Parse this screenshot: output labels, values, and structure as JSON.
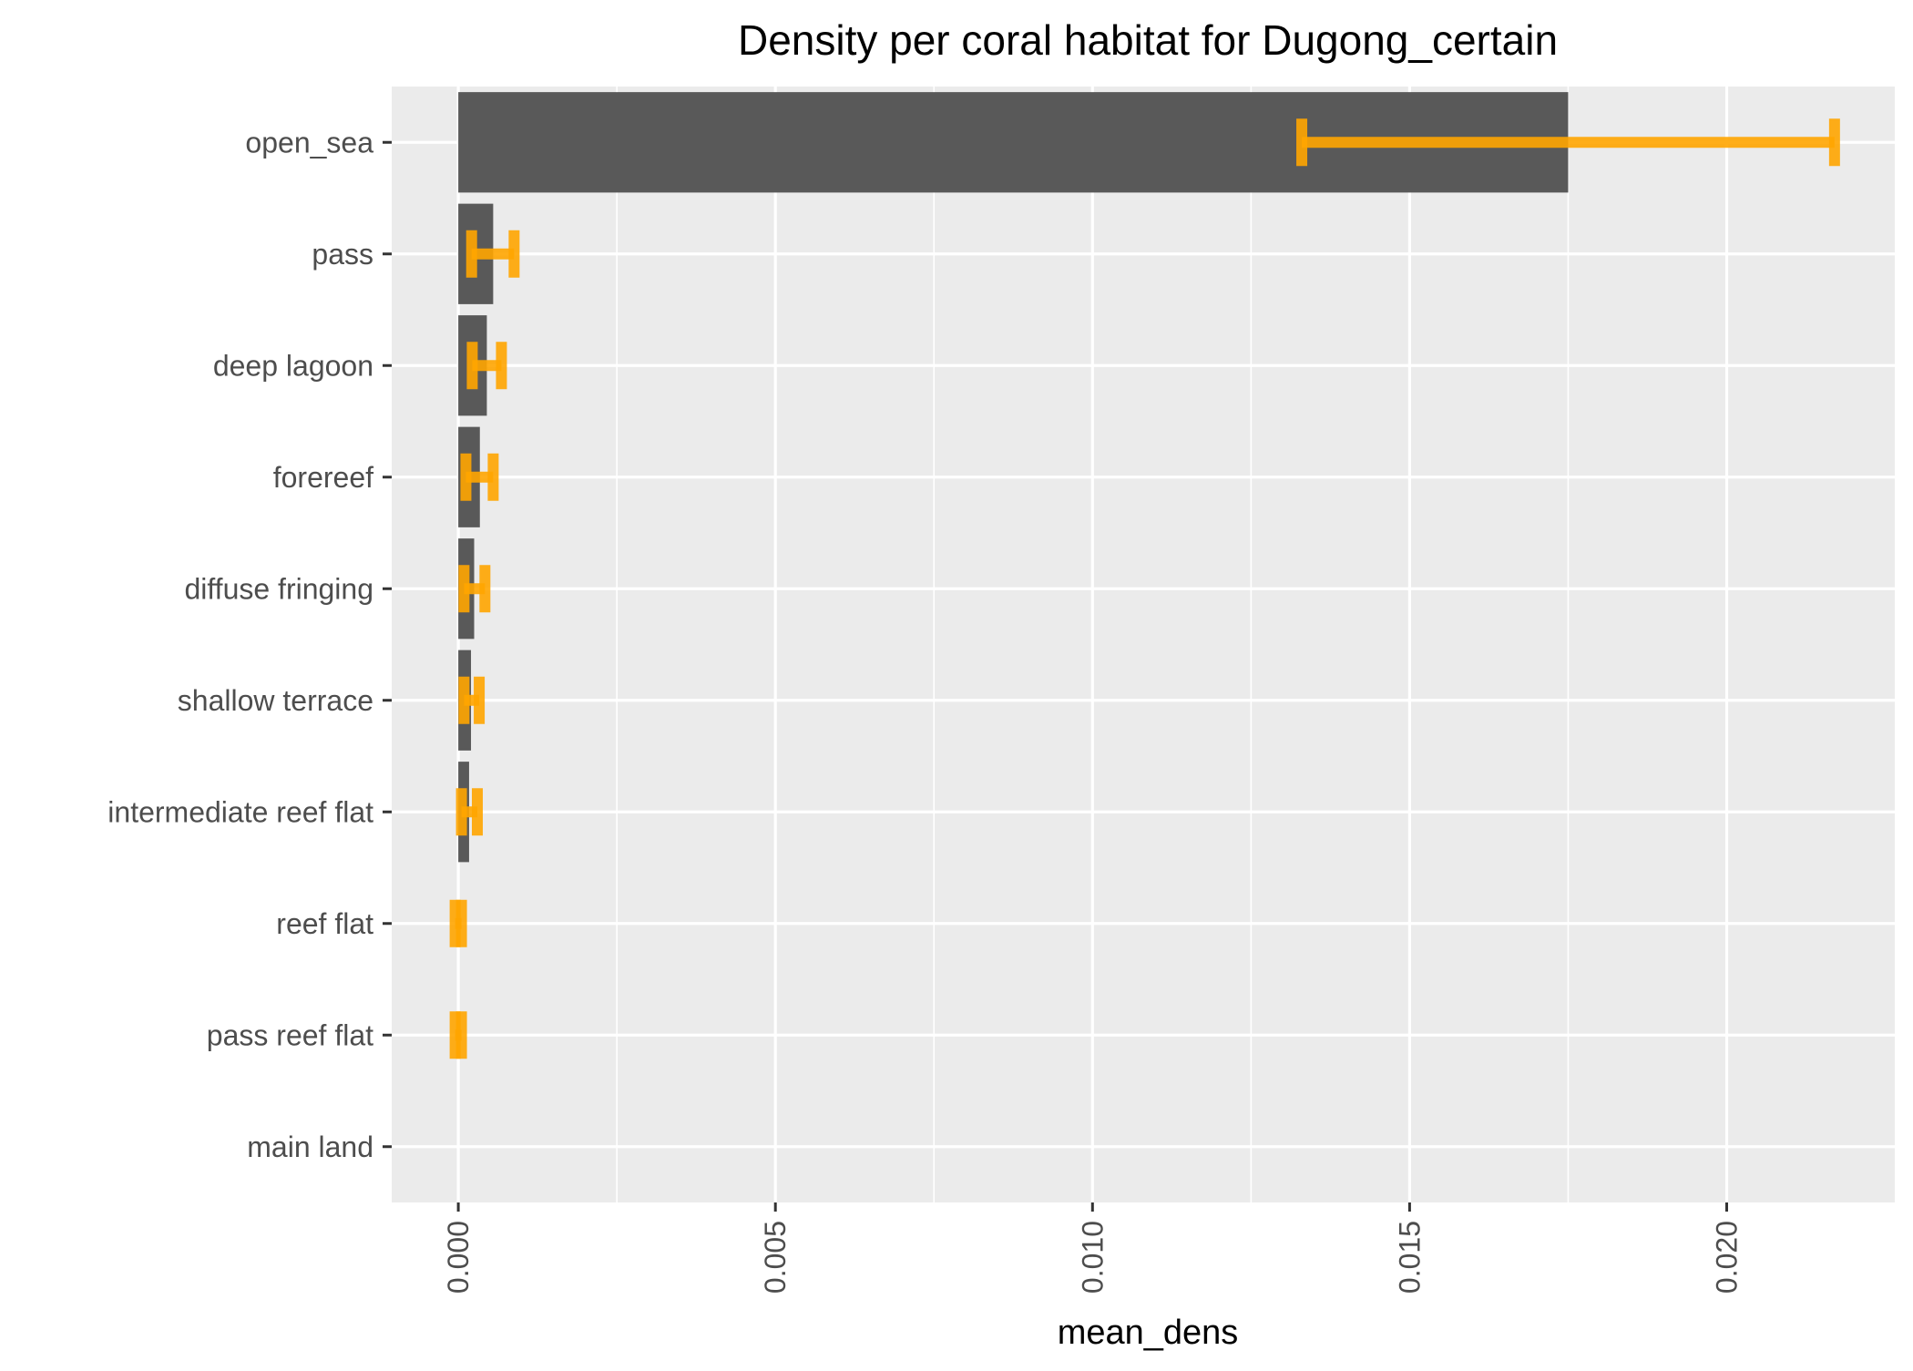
{
  "chart_data": {
    "type": "bar",
    "orientation": "horizontal",
    "title": "Density per coral habitat for Dugong_certain",
    "xlabel": "mean_dens",
    "ylabel": "",
    "xlim": [
      -0.00105,
      0.02265
    ],
    "x_ticks": [
      0.0,
      0.005,
      0.01,
      0.015,
      0.02
    ],
    "x_tick_labels": [
      "0.000",
      "0.005",
      "0.010",
      "0.015",
      "0.020"
    ],
    "grid": true,
    "categories": [
      "open_sea",
      "pass",
      "deep lagoon",
      "forereef",
      "diffuse fringing",
      "shallow terrace",
      "intermediate reef flat",
      "reef flat",
      "pass reef flat",
      "main land"
    ],
    "values": [
      0.0175,
      0.00055,
      0.00045,
      0.00034,
      0.00025,
      0.0002,
      0.00017,
      0.0,
      0.0,
      0.0
    ],
    "error_low": [
      0.0133,
      0.00021,
      0.00022,
      0.00012,
      9e-05,
      9e-05,
      5e-05,
      -5e-05,
      -5e-05,
      null
    ],
    "error_high": [
      0.0217,
      0.00088,
      0.00068,
      0.00055,
      0.00042,
      0.00033,
      0.0003,
      5e-05,
      5e-05,
      null
    ],
    "colors": {
      "bar": "#595959",
      "error_bar": "#FFA500",
      "panel_background": "#EBEBEB",
      "grid": "#FFFFFF",
      "tick_text": "#4D4D4D",
      "title_text": "#000000"
    }
  }
}
